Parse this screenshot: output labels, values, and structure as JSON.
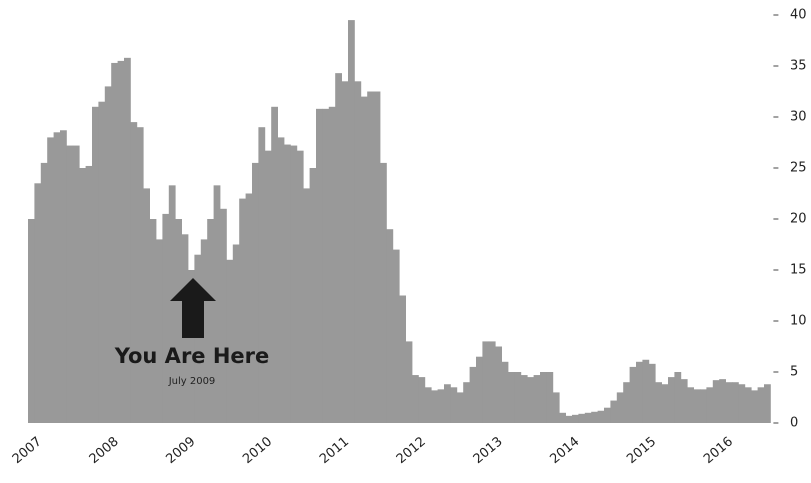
{
  "chart_data": {
    "type": "bar",
    "categories": [
      "2007",
      null,
      null,
      null,
      null,
      null,
      null,
      null,
      null,
      null,
      null,
      null,
      "2008",
      null,
      null,
      null,
      null,
      null,
      null,
      null,
      null,
      null,
      null,
      null,
      "2009",
      null,
      null,
      null,
      null,
      null,
      null,
      null,
      null,
      null,
      null,
      null,
      "2010",
      null,
      null,
      null,
      null,
      null,
      null,
      null,
      null,
      null,
      null,
      null,
      "2011",
      null,
      null,
      null,
      null,
      null,
      null,
      null,
      null,
      null,
      null,
      null,
      "2012",
      null,
      null,
      null,
      null,
      null,
      null,
      null,
      null,
      null,
      null,
      null,
      "2013",
      null,
      null,
      null,
      null,
      null,
      null,
      null,
      null,
      null,
      null,
      null,
      "2014",
      null,
      null,
      null,
      null,
      null,
      null,
      null,
      null,
      null,
      null,
      null,
      "2015",
      null,
      null,
      null,
      null,
      null,
      null,
      null,
      null,
      null,
      null,
      null,
      "2016",
      null,
      null,
      null,
      null,
      null,
      null,
      null
    ],
    "values": [
      20,
      23.5,
      25.5,
      28,
      28.5,
      28.7,
      27.2,
      27.2,
      25,
      25.2,
      31,
      31.5,
      33,
      35.3,
      35.5,
      35.8,
      29.5,
      29,
      23,
      20,
      18,
      20.5,
      23.3,
      20,
      18.5,
      15,
      16.5,
      18,
      20,
      23.3,
      21,
      16,
      17.5,
      22,
      22.5,
      25.5,
      29,
      26.7,
      31,
      28,
      27.3,
      27.2,
      26.7,
      23,
      25,
      30.8,
      30.8,
      31,
      34.3,
      33.5,
      39.5,
      33.5,
      32,
      32.5,
      32.5,
      25.5,
      19,
      17,
      12.5,
      8,
      4.7,
      4.5,
      3.5,
      3.2,
      3.3,
      3.8,
      3.5,
      3,
      4,
      5.5,
      6.5,
      8,
      8,
      7.5,
      6,
      5,
      5,
      4.7,
      4.5,
      4.7,
      5,
      5,
      3,
      1,
      0.7,
      0.8,
      0.9,
      1,
      1.1,
      1.2,
      1.5,
      2.2,
      3,
      4,
      5.5,
      6,
      6.2,
      5.8,
      4,
      3.8,
      4.5,
      5,
      4.3,
      3.5,
      3.3,
      3.3,
      3.5,
      4.2,
      4.3,
      4,
      4,
      3.8,
      3.5,
      3.2,
      3.5,
      3.8
    ],
    "color": "#999999",
    "ylim": [
      0,
      40
    ],
    "yticks": [
      0,
      5,
      10,
      15,
      20,
      25,
      30,
      35,
      40
    ],
    "grid": false,
    "annotations": [
      "You Are Here",
      "July 2009"
    ]
  }
}
